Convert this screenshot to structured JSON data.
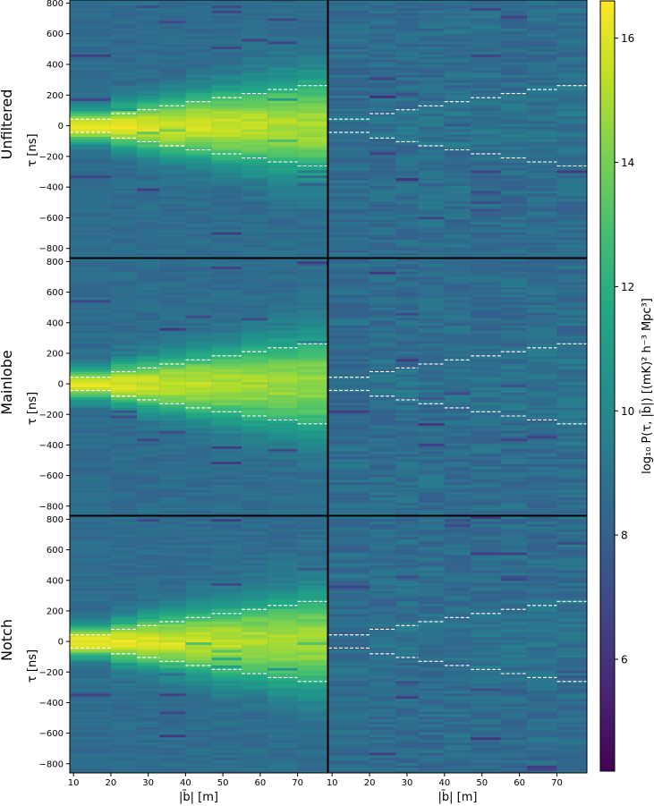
{
  "chart_data": {
    "type": "heatmap",
    "description_rows": [
      "Unfiltered",
      "Mainlobe",
      "Notch"
    ],
    "row_labels": [
      "Unfiltered",
      "Mainlobe",
      "Notch"
    ],
    "ylabel": "τ [ns]",
    "xlabel": "|b̄| [m]",
    "x_ticks": [
      10,
      20,
      30,
      40,
      50,
      60,
      70
    ],
    "y_ticks": [
      -800,
      -600,
      -400,
      -200,
      0,
      200,
      400,
      600,
      800
    ],
    "xlim": [
      9,
      78
    ],
    "ylim": [
      -860,
      820
    ],
    "colorbar": {
      "label": "log₁₀ P(τ, |b̄|) [(mK)² h⁻³ Mpc³]",
      "ticks": [
        6,
        8,
        10,
        12,
        14,
        16
      ],
      "range": [
        4.2,
        16.6
      ],
      "colormap": "viridis"
    },
    "baseline_bin_edges": [
      9,
      20,
      27,
      33,
      40,
      47,
      55,
      62,
      70,
      78
    ],
    "horizon_delay_ns": [
      43,
      80,
      104,
      130,
      157,
      183,
      210,
      236,
      262
    ],
    "panels": [
      {
        "row": "Unfiltered",
        "column": "left",
        "peak": 16.3,
        "background": 8.6
      },
      {
        "row": "Unfiltered",
        "column": "right",
        "peak": 9.2,
        "background": 8.6
      },
      {
        "row": "Mainlobe",
        "column": "left",
        "peak": 16.0,
        "background": 8.6
      },
      {
        "row": "Mainlobe",
        "column": "right",
        "peak": 9.0,
        "background": 8.6
      },
      {
        "row": "Notch",
        "column": "left",
        "peak": 16.2,
        "background": 8.6
      },
      {
        "row": "Notch",
        "column": "right",
        "peak": 9.0,
        "background": 8.6
      }
    ]
  }
}
